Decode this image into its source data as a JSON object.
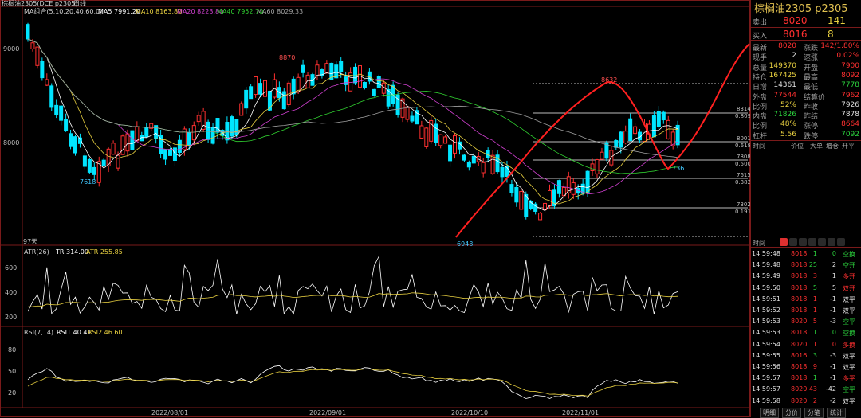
{
  "header": {
    "title": "棕榈油2305(DCE p2305)",
    "period": "日线",
    "ma_label": "MA组合(5,10,20,40,60,0)",
    "ma5": "MA5 7991.20",
    "ma10": "MA10 8163.80",
    "ma20": "MA20 8223.80",
    "ma40": "MA40 7952.70",
    "ma60": "MA60 8029.33"
  },
  "atr_label": {
    "name": "ATR(26)",
    "tr": "TR 314.00",
    "atr": "ATR 255.85"
  },
  "rsi_label": {
    "name": "RSI(7,14)",
    "rsi1": "RSI1 40.41",
    "rsi2": "RSI2 46.60"
  },
  "colors": {
    "up": "#ff3030",
    "down": "#00e5ff",
    "ma5": "#ffffff",
    "ma10": "#e8d040",
    "ma20": "#d040d0",
    "ma40": "#30d030",
    "ma60": "#a0a0a0"
  },
  "chart_data": {
    "type": "candlestick",
    "price_ticks": [
      "9000",
      "8000"
    ],
    "atr_ticks": [
      "600",
      "400",
      "200"
    ],
    "rsi_ticks": [
      "80",
      "50",
      "20"
    ],
    "date_labels": [
      "2022/08/01",
      "2022/09/01",
      "2022/10/10",
      "2022/11/01"
    ],
    "price_annotations": [
      "8870",
      "7618",
      "6948",
      "8632",
      "7736",
      "97天"
    ],
    "fib_levels": [
      {
        "price": "8314",
        "ratio": "0.809"
      },
      {
        "price": "8001",
        "ratio": "0.618"
      },
      {
        "price": "7808",
        "ratio": "0.500"
      },
      {
        "price": "7615",
        "ratio": "0.382"
      },
      {
        "price": "7302",
        "ratio": "0.191"
      }
    ]
  },
  "panel": {
    "name": "棕榈油2305",
    "code": "p2305",
    "sell": {
      "label": "卖出",
      "price": "8020",
      "vol": "141"
    },
    "buy": {
      "label": "买入",
      "price": "8016",
      "vol": "8"
    },
    "stats": [
      {
        "l1": "最新",
        "v1": "8020",
        "c1": "red",
        "l2": "涨跌",
        "v2": "142/1.80%",
        "c2": "red"
      },
      {
        "l1": "现手",
        "v1": "2",
        "c1": "white",
        "l2": "速涨",
        "v2": "0.02%",
        "c2": "red"
      },
      {
        "l1": "总量",
        "v1": "149370",
        "c1": "yellow",
        "l2": "开盘",
        "v2": "7900",
        "c2": "red"
      },
      {
        "l1": "持仓",
        "v1": "167425",
        "c1": "yellow",
        "l2": "最高",
        "v2": "8092",
        "c2": "red"
      },
      {
        "l1": "日增",
        "v1": "14361",
        "c1": "white",
        "l2": "最低",
        "v2": "7778",
        "c2": "green"
      },
      {
        "l1": "外盘",
        "v1": "77544",
        "c1": "red",
        "l2": "结算价",
        "v2": "7962",
        "c2": "red"
      },
      {
        "l1": "比例",
        "v1": "52%",
        "c1": "yellow",
        "l2": "昨收",
        "v2": "7926",
        "c2": "white"
      },
      {
        "l1": "内盘",
        "v1": "71826",
        "c1": "green",
        "l2": "昨结",
        "v2": "7878",
        "c2": "white"
      },
      {
        "l1": "比例",
        "v1": "48%",
        "c1": "yellow",
        "l2": "涨停",
        "v2": "8664",
        "c2": "red"
      },
      {
        "l1": "杠杆",
        "v1": "5.56",
        "c1": "yellow",
        "l2": "跌停",
        "v2": "7092",
        "c2": "green"
      }
    ],
    "col_headers": [
      "时间",
      "价位",
      "大单",
      "增仓",
      "开平"
    ],
    "tick_header": "时间",
    "ticks": [
      {
        "t": "14:59:48",
        "p": "8018",
        "v": "1",
        "d": "0",
        "k": "空换",
        "vc": "green",
        "dc": "green"
      },
      {
        "t": "14:59:48",
        "p": "8018",
        "v": "25",
        "d": "2",
        "k": "空开",
        "vc": "green",
        "dc": "white"
      },
      {
        "t": "14:59:49",
        "p": "8018",
        "v": "3",
        "d": "1",
        "k": "多开",
        "vc": "red",
        "dc": "white"
      },
      {
        "t": "14:59:50",
        "p": "8018",
        "v": "5",
        "d": "5",
        "k": "双开",
        "vc": "green",
        "dc": "white"
      },
      {
        "t": "14:59:51",
        "p": "8018",
        "v": "1",
        "d": "-1",
        "k": "双平",
        "vc": "red",
        "dc": "white"
      },
      {
        "t": "14:59:52",
        "p": "8018",
        "v": "1",
        "d": "-1",
        "k": "双平",
        "vc": "red",
        "dc": "white"
      },
      {
        "t": "14:59:53",
        "p": "8020",
        "v": "5",
        "d": "-3",
        "k": "空平",
        "vc": "red",
        "dc": "white"
      },
      {
        "t": "14:59:53",
        "p": "8018",
        "v": "1",
        "d": "0",
        "k": "空换",
        "vc": "green",
        "dc": "green"
      },
      {
        "t": "14:59:54",
        "p": "8020",
        "v": "1",
        "d": "0",
        "k": "多换",
        "vc": "red",
        "dc": "red"
      },
      {
        "t": "14:59:55",
        "p": "8016",
        "v": "3",
        "d": "-3",
        "k": "双平",
        "vc": "green",
        "dc": "white"
      },
      {
        "t": "14:59:56",
        "p": "8018",
        "v": "9",
        "d": "-1",
        "k": "双平",
        "vc": "red",
        "dc": "white"
      },
      {
        "t": "14:59:57",
        "p": "8018",
        "v": "1",
        "d": "-1",
        "k": "多平",
        "vc": "green",
        "dc": "white"
      },
      {
        "t": "14:59:57",
        "p": "8020",
        "v": "43",
        "d": "-42",
        "k": "空平",
        "vc": "red",
        "dc": "white"
      },
      {
        "t": "14:59:58",
        "p": "8020",
        "v": "2",
        "d": "-2",
        "k": "双平",
        "vc": "red",
        "dc": "white"
      }
    ],
    "tabs": [
      "明细",
      "分价",
      "分笔",
      "统计"
    ]
  }
}
